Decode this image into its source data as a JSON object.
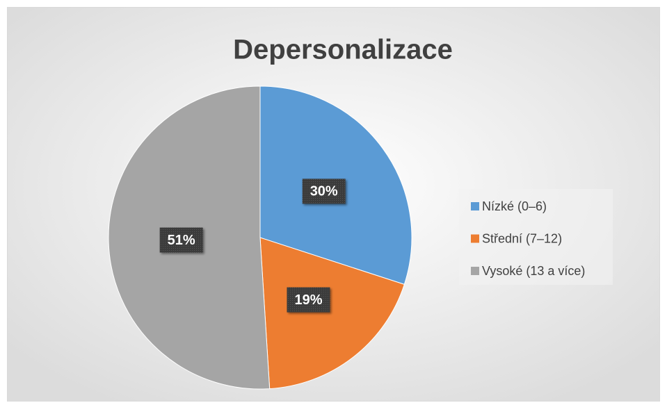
{
  "chart_data": {
    "type": "pie",
    "title": "Depersonalizace",
    "categories": [
      "Nízké (0–6)",
      "Střední (7–12)",
      "Vysoké (13 a více)"
    ],
    "values": [
      30,
      19,
      51
    ],
    "value_labels": [
      "30%",
      "19%",
      "51%"
    ],
    "colors": [
      "#5b9bd5",
      "#ed7d31",
      "#a5a5a5"
    ],
    "legend": "right"
  }
}
